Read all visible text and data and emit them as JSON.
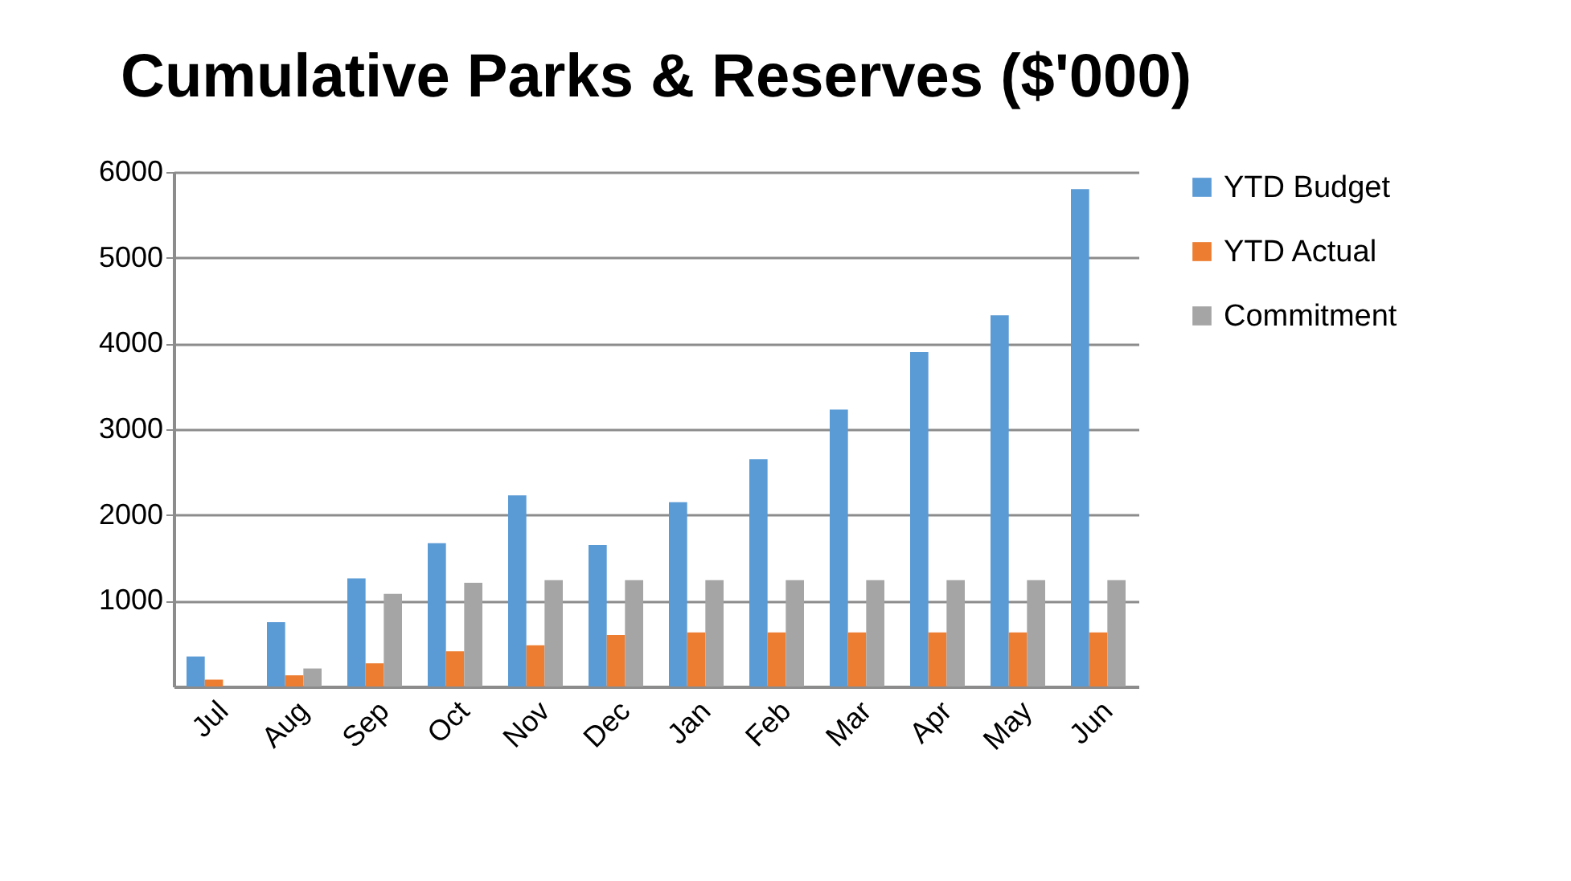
{
  "chart_data": {
    "type": "bar",
    "title": "Cumulative Parks & Reserves ($'000)",
    "categories": [
      "Jul",
      "Aug",
      "Sep",
      "Oct",
      "Nov",
      "Dec",
      "Jan",
      "Feb",
      "Mar",
      "Apr",
      "May",
      "Jun"
    ],
    "series": [
      {
        "name": "YTD Budget",
        "color": "#5b9bd5",
        "values": [
          350,
          750,
          1260,
          1670,
          2230,
          1650,
          2150,
          2650,
          3230,
          3900,
          4330,
          5800
        ]
      },
      {
        "name": "YTD Actual",
        "color": "#ed7d31",
        "values": [
          80,
          130,
          270,
          410,
          480,
          600,
          630,
          630,
          630,
          630,
          630,
          630
        ]
      },
      {
        "name": "Commitment",
        "color": "#a5a5a5",
        "values": [
          0,
          210,
          1080,
          1210,
          1240,
          1240,
          1240,
          1240,
          1240,
          1240,
          1240,
          1240
        ]
      }
    ],
    "ylim": [
      0,
      6000
    ],
    "yticks": [
      1000,
      2000,
      3000,
      4000,
      5000,
      6000
    ],
    "grid": "y",
    "legend": "right"
  }
}
